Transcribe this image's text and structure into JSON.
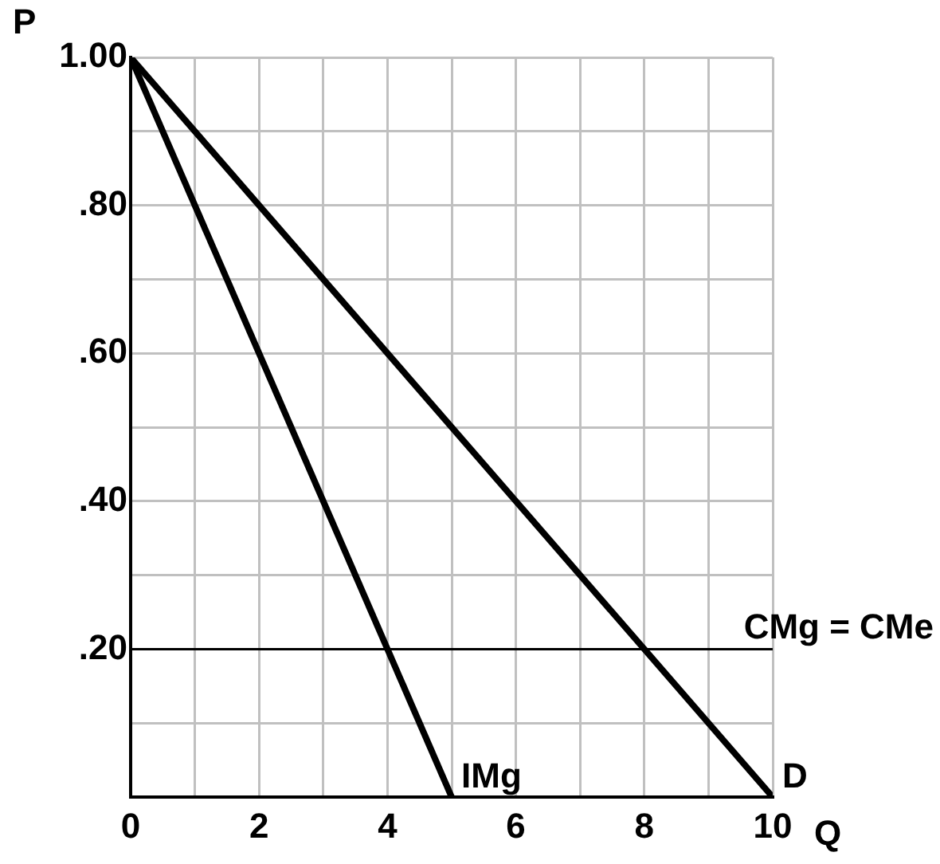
{
  "chart_data": {
    "type": "line",
    "xlabel": "Q",
    "ylabel": "P",
    "xlim": [
      0,
      10
    ],
    "ylim": [
      0,
      1
    ],
    "xticks": [
      0,
      {
        "value": 1,
        "label": null
      },
      2,
      {
        "value": 3,
        "label": null
      },
      4,
      {
        "value": 5,
        "label": null
      },
      6,
      {
        "value": 7,
        "label": null
      },
      8,
      {
        "value": 9,
        "label": null
      },
      10
    ],
    "yticks": [
      {
        "value": 0,
        "label": null
      },
      {
        "value": 0.1,
        "label": null
      },
      {
        "value": 0.2,
        "label": ".20"
      },
      {
        "value": 0.3,
        "label": null
      },
      {
        "value": 0.4,
        "label": ".40"
      },
      {
        "value": 0.5,
        "label": null
      },
      {
        "value": 0.6,
        "label": ".60"
      },
      {
        "value": 0.7,
        "label": null
      },
      {
        "value": 0.8,
        "label": ".80"
      },
      {
        "value": 0.9,
        "label": null
      },
      {
        "value": 1,
        "label": "1.00"
      }
    ],
    "series": [
      {
        "name": "D",
        "color": "#000000",
        "x": [
          0,
          10
        ],
        "values": [
          1,
          0
        ]
      },
      {
        "name": "IMg",
        "color": "#000000",
        "x": [
          0,
          5
        ],
        "values": [
          1,
          0
        ]
      }
    ],
    "ref_lines": [
      {
        "axis": "y",
        "value": 0.2,
        "label": "CMg = CMe",
        "color": "#000000"
      }
    ],
    "grid": true,
    "legend": false,
    "marker": "none",
    "line_style": "solid"
  }
}
